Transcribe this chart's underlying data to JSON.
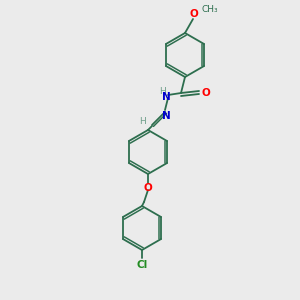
{
  "bg_color": "#ebebeb",
  "bond_color": "#2d6e4e",
  "atom_colors": {
    "O": "#ff0000",
    "N": "#0000cd",
    "Cl": "#228b22",
    "H": "#6e9e8a"
  },
  "figsize": [
    3.0,
    3.0
  ],
  "dpi": 100,
  "ring_r": 22,
  "lw_single": 1.3,
  "lw_double": 1.2
}
